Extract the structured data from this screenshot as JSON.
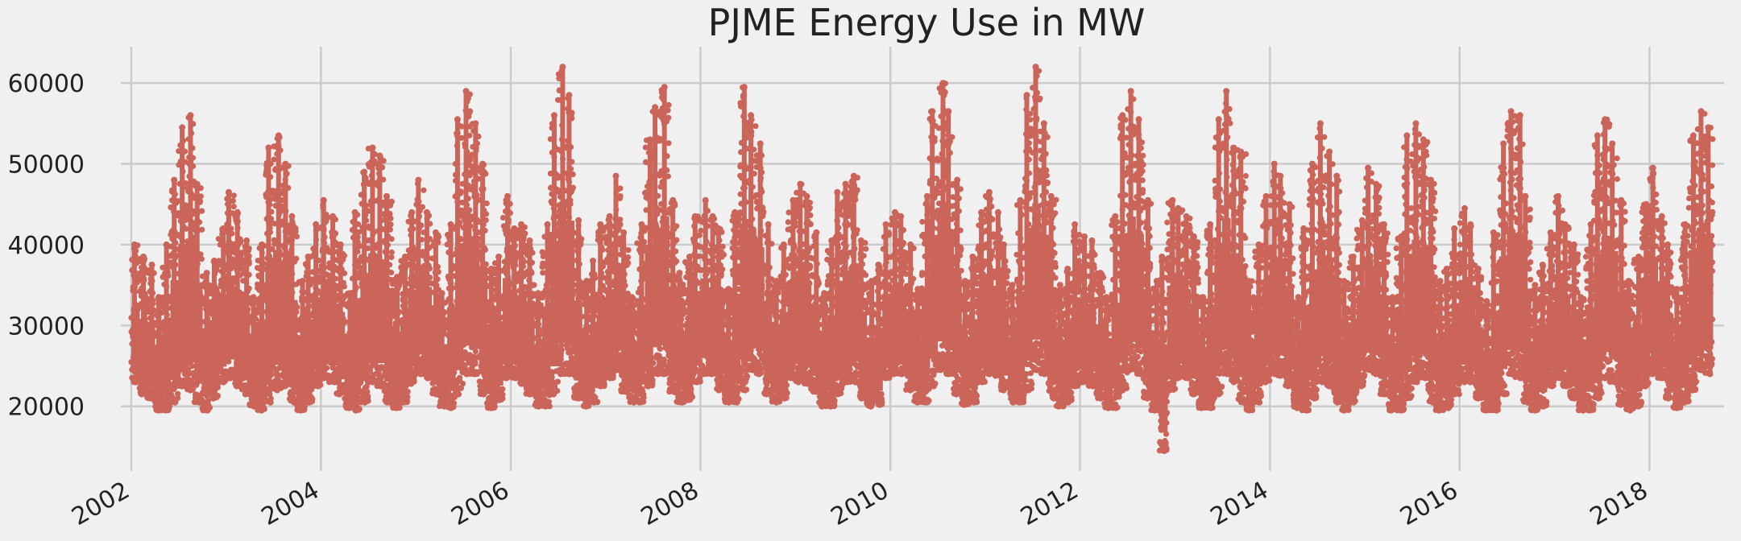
{
  "chart_data": {
    "type": "scatter",
    "title": "PJME Energy Use in MW",
    "xlabel": "",
    "ylabel": "",
    "x_type": "date",
    "xlim": [
      "2001-11-22",
      "2018-10-15"
    ],
    "ylim": [
      12000,
      64500
    ],
    "x_ticks": [
      "2002",
      "2004",
      "2006",
      "2008",
      "2010",
      "2012",
      "2014",
      "2016",
      "2018"
    ],
    "y_ticks": [
      "20000",
      "30000",
      "40000",
      "50000",
      "60000"
    ],
    "grid": true,
    "legend": "none",
    "marker_color": "#cb6459",
    "series": [
      {
        "x": [
          "2002-01",
          "2002-02",
          "2002-03",
          "2002-04",
          "2002-05",
          "2002-06",
          "2002-07",
          "2002-08",
          "2002-09",
          "2002-10",
          "2002-11",
          "2002-12",
          "2003-01",
          "2003-02",
          "2003-03",
          "2003-04",
          "2003-05",
          "2003-06",
          "2003-07",
          "2003-08",
          "2003-09",
          "2003-10",
          "2003-11",
          "2003-12",
          "2004-01",
          "2004-02",
          "2004-03",
          "2004-04",
          "2004-05",
          "2004-06",
          "2004-07",
          "2004-08",
          "2004-09",
          "2004-10",
          "2004-11",
          "2004-12",
          "2005-01",
          "2005-02",
          "2005-03",
          "2005-04",
          "2005-05",
          "2005-06",
          "2005-07",
          "2005-08",
          "2005-09",
          "2005-10",
          "2005-11",
          "2005-12",
          "2006-01",
          "2006-02",
          "2006-03",
          "2006-04",
          "2006-05",
          "2006-06",
          "2006-07",
          "2006-08",
          "2006-09",
          "2006-10",
          "2006-11",
          "2006-12",
          "2007-01",
          "2007-02",
          "2007-03",
          "2007-04",
          "2007-05",
          "2007-06",
          "2007-07",
          "2007-08",
          "2007-09",
          "2007-10",
          "2007-11",
          "2007-12",
          "2008-01",
          "2008-02",
          "2008-03",
          "2008-04",
          "2008-05",
          "2008-06",
          "2008-07",
          "2008-08",
          "2008-09",
          "2008-10",
          "2008-11",
          "2008-12",
          "2009-01",
          "2009-02",
          "2009-03",
          "2009-04",
          "2009-05",
          "2009-06",
          "2009-07",
          "2009-08",
          "2009-09",
          "2009-10",
          "2009-11",
          "2009-12",
          "2010-01",
          "2010-02",
          "2010-03",
          "2010-04",
          "2010-05",
          "2010-06",
          "2010-07",
          "2010-08",
          "2010-09",
          "2010-10",
          "2010-11",
          "2010-12",
          "2011-01",
          "2011-02",
          "2011-03",
          "2011-04",
          "2011-05",
          "2011-06",
          "2011-07",
          "2011-08",
          "2011-09",
          "2011-10",
          "2011-11",
          "2011-12",
          "2012-01",
          "2012-02",
          "2012-03",
          "2012-04",
          "2012-05",
          "2012-06",
          "2012-07",
          "2012-08",
          "2012-09",
          "2012-10",
          "2012-11",
          "2012-12",
          "2013-01",
          "2013-02",
          "2013-03",
          "2013-04",
          "2013-05",
          "2013-06",
          "2013-07",
          "2013-08",
          "2013-09",
          "2013-10",
          "2013-11",
          "2013-12",
          "2014-01",
          "2014-02",
          "2014-03",
          "2014-04",
          "2014-05",
          "2014-06",
          "2014-07",
          "2014-08",
          "2014-09",
          "2014-10",
          "2014-11",
          "2014-12",
          "2015-01",
          "2015-02",
          "2015-03",
          "2015-04",
          "2015-05",
          "2015-06",
          "2015-07",
          "2015-08",
          "2015-09",
          "2015-10",
          "2015-11",
          "2015-12",
          "2016-01",
          "2016-02",
          "2016-03",
          "2016-04",
          "2016-05",
          "2016-06",
          "2016-07",
          "2016-08",
          "2016-09",
          "2016-10",
          "2016-11",
          "2016-12",
          "2017-01",
          "2017-02",
          "2017-03",
          "2017-04",
          "2017-05",
          "2017-06",
          "2017-07",
          "2017-08",
          "2017-09",
          "2017-10",
          "2017-11",
          "2017-12",
          "2018-01",
          "2018-02",
          "2018-03",
          "2018-04",
          "2018-05",
          "2018-06",
          "2018-07",
          "2018-08"
        ],
        "y_min": [
          23000,
          21500,
          21000,
          19500,
          19500,
          20500,
          22500,
          22000,
          20500,
          19500,
          21000,
          23000,
          23500,
          22500,
          21500,
          20000,
          19500,
          20500,
          22000,
          22500,
          20500,
          19500,
          20500,
          22500,
          23500,
          23000,
          21500,
          19800,
          19500,
          20500,
          23000,
          22500,
          20500,
          19800,
          20500,
          22800,
          24000,
          23500,
          21500,
          20000,
          19800,
          21500,
          24000,
          24000,
          21500,
          19800,
          20800,
          23500,
          23500,
          22800,
          21500,
          20000,
          20000,
          21500,
          24000,
          24000,
          21000,
          20000,
          20500,
          22500,
          23500,
          24500,
          21800,
          20500,
          20500,
          22500,
          24000,
          24000,
          21800,
          20500,
          20800,
          23000,
          24000,
          24000,
          22000,
          20500,
          20500,
          22000,
          24500,
          24000,
          21500,
          20500,
          21000,
          23500,
          23000,
          22800,
          21800,
          20000,
          20000,
          21500,
          23000,
          23000,
          21000,
          20000,
          20200,
          23500,
          24000,
          24000,
          22000,
          20500,
          20500,
          22500,
          24500,
          24000,
          21500,
          20200,
          20500,
          23000,
          24000,
          23800,
          22000,
          20500,
          20500,
          22000,
          24500,
          24000,
          21000,
          20000,
          20500,
          22500,
          23000,
          22500,
          21000,
          19800,
          19800,
          22000,
          24500,
          24000,
          21000,
          19500,
          14500,
          22000,
          23500,
          23500,
          21500,
          19800,
          19800,
          21500,
          24000,
          23000,
          20500,
          19500,
          20500,
          23000,
          24000,
          23800,
          22500,
          19800,
          19500,
          21000,
          23000,
          22500,
          20500,
          19500,
          20500,
          22500,
          24500,
          24000,
          21500,
          19500,
          19500,
          21000,
          23000,
          23500,
          20500,
          19500,
          19800,
          21500,
          23000,
          23000,
          21000,
          19500,
          19500,
          21500,
          24000,
          23500,
          20500,
          19500,
          20000,
          22500,
          23500,
          22500,
          21000,
          19500,
          19500,
          21000,
          23500,
          23000,
          20200,
          19500,
          20000,
          22500,
          24000,
          23500,
          21000,
          19800,
          20500,
          22000,
          24500,
          24000
        ],
        "y_max": [
          40000,
          38500,
          37500,
          33500,
          40000,
          48000,
          54500,
          56000,
          47500,
          36500,
          38000,
          42000,
          46500,
          44000,
          40500,
          33500,
          40000,
          52000,
          53500,
          50000,
          43500,
          35500,
          38500,
          42500,
          45500,
          43500,
          40000,
          34000,
          44000,
          49000,
          52000,
          51000,
          46000,
          36000,
          38500,
          44000,
          48000,
          44000,
          41500,
          34000,
          42500,
          55500,
          59000,
          55000,
          50000,
          37000,
          38500,
          46000,
          42000,
          42500,
          40500,
          34000,
          42500,
          56000,
          62000,
          58500,
          43000,
          35500,
          38000,
          42500,
          43500,
          48500,
          41500,
          33500,
          42500,
          53000,
          57000,
          59500,
          45500,
          36500,
          38500,
          43500,
          45500,
          43500,
          42000,
          34500,
          44000,
          59500,
          56000,
          52500,
          42500,
          35500,
          40000,
          45500,
          47500,
          46000,
          41500,
          34000,
          40500,
          46500,
          47500,
          48500,
          40500,
          35500,
          37500,
          42500,
          44000,
          43500,
          40000,
          34500,
          46000,
          56500,
          60000,
          56500,
          48000,
          35500,
          38500,
          44000,
          46500,
          44000,
          40000,
          35000,
          45500,
          58500,
          62000,
          55000,
          46000,
          35000,
          37000,
          42500,
          41000,
          40500,
          36500,
          33500,
          43500,
          56000,
          59000,
          55500,
          45500,
          35500,
          38500,
          45500,
          44500,
          43500,
          41000,
          33500,
          42500,
          55500,
          59000,
          52000,
          51500,
          35500,
          40000,
          46000,
          50000,
          48500,
          45000,
          33500,
          42000,
          50000,
          55000,
          51500,
          48500,
          35500,
          38500,
          43000,
          49500,
          47500,
          42500,
          33500,
          41000,
          53500,
          55000,
          53000,
          48000,
          35500,
          37000,
          42000,
          44500,
          42500,
          37000,
          33000,
          41500,
          52500,
          56500,
          56000,
          46000,
          35000,
          37500,
          41500,
          46000,
          42500,
          40000,
          33500,
          42500,
          53500,
          55500,
          52500,
          45500,
          35500,
          38500,
          45000,
          49500,
          43500,
          40000,
          34500,
          42500,
          53500,
          56500,
          54500
        ]
      }
    ]
  }
}
